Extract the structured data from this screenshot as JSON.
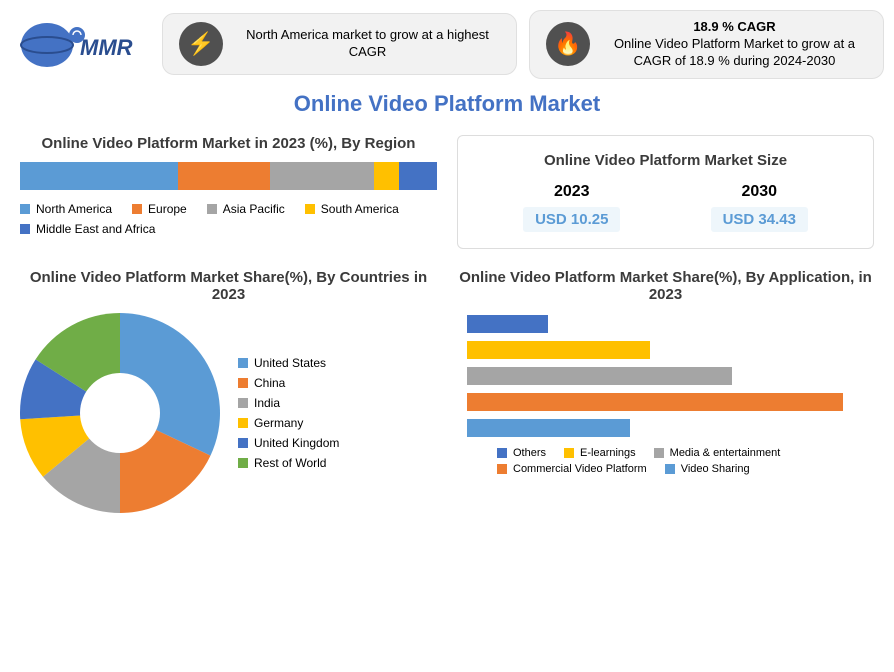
{
  "logo_text": "MMR",
  "pills": [
    {
      "icon": "⚡",
      "text": "North America market to grow at a highest CAGR"
    },
    {
      "icon": "🔥",
      "title": "18.9 % CAGR",
      "text": "Online Video Platform Market to grow at a CAGR of 18.9 % during 2024-2030"
    }
  ],
  "main_title": "Online Video Platform Market",
  "region_chart": {
    "title": "Online Video Platform Market in 2023 (%), By Region",
    "type": "stacked-bar",
    "segments": [
      {
        "label": "North America",
        "value": 38,
        "color": "#5b9bd5"
      },
      {
        "label": "Europe",
        "value": 22,
        "color": "#ed7d31"
      },
      {
        "label": "Asia Pacific",
        "value": 25,
        "color": "#a5a5a5"
      },
      {
        "label": "South America",
        "value": 6,
        "color": "#ffc000"
      },
      {
        "label": "Middle East and Africa",
        "value": 9,
        "color": "#4472c4"
      }
    ]
  },
  "size_box": {
    "title": "Online Video Platform Market Size",
    "items": [
      {
        "year": "2023",
        "value": "USD 10.25"
      },
      {
        "year": "2030",
        "value": "USD 34.43"
      }
    ]
  },
  "country_chart": {
    "title": "Online Video Platform Market Share(%), By Countries in 2023",
    "type": "donut",
    "slices": [
      {
        "label": "United States",
        "value": 32,
        "color": "#5b9bd5"
      },
      {
        "label": "China",
        "value": 18,
        "color": "#ed7d31"
      },
      {
        "label": "India",
        "value": 14,
        "color": "#a5a5a5"
      },
      {
        "label": "Germany",
        "value": 10,
        "color": "#ffc000"
      },
      {
        "label": "United Kingdom",
        "value": 10,
        "color": "#4472c4"
      },
      {
        "label": "Rest of World",
        "value": 16,
        "color": "#70ad47"
      }
    ]
  },
  "application_chart": {
    "title": "Online Video Platform Market Share(%), By Application, in 2023",
    "type": "hbar",
    "max": 40,
    "bars": [
      {
        "label": "Others",
        "value": 8,
        "color": "#4472c4"
      },
      {
        "label": "E-learnings",
        "value": 18,
        "color": "#ffc000"
      },
      {
        "label": "Media & entertainment",
        "value": 26,
        "color": "#a5a5a5"
      },
      {
        "label": "Commercial Video Platform",
        "value": 37,
        "color": "#ed7d31"
      },
      {
        "label": "Video Sharing",
        "value": 16,
        "color": "#5b9bd5"
      }
    ]
  }
}
